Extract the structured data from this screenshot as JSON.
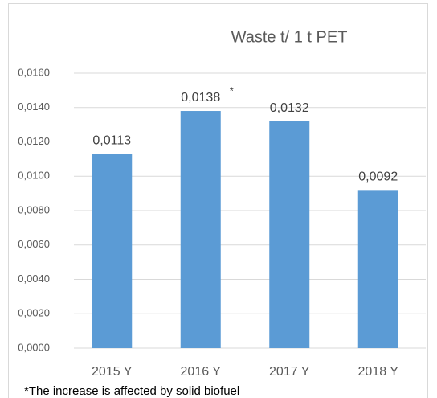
{
  "chart_data": {
    "type": "bar",
    "title": "Waste t/ 1 t PET",
    "categories": [
      "2015 Y",
      "2016 Y",
      "2017 Y",
      "2018 Y"
    ],
    "values": [
      0.0113,
      0.0138,
      0.0132,
      0.0092
    ],
    "value_labels": [
      "0,0113",
      "0,0138",
      "0,0132",
      "0,0092"
    ],
    "annotation": "*",
    "footnote": "*The increase is affected by solid biofuel",
    "color": "#5b9bd5",
    "ylim": [
      0,
      0.016
    ],
    "yticks": [
      {
        "value": 0,
        "label": "0,0000"
      },
      {
        "value": 0.002,
        "label": "0,0020"
      },
      {
        "value": 0.004,
        "label": "0,0040"
      },
      {
        "value": 0.006,
        "label": "0,0060"
      },
      {
        "value": 0.008,
        "label": "0,0080"
      },
      {
        "value": 0.01,
        "label": "0,0100"
      },
      {
        "value": 0.012,
        "label": "0,0120"
      },
      {
        "value": 0.014,
        "label": "0,0140"
      },
      {
        "value": 0.016,
        "label": "0,0160"
      }
    ],
    "grid": true
  }
}
